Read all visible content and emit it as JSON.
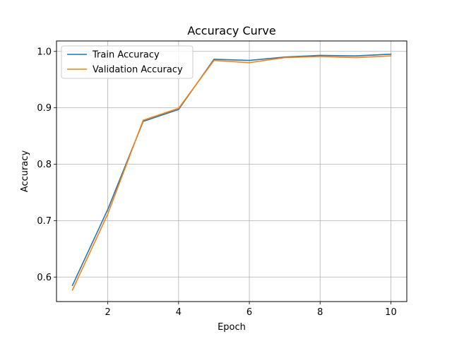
{
  "chart_data": {
    "type": "line",
    "title": "Accuracy Curve",
    "xlabel": "Epoch",
    "ylabel": "Accuracy",
    "x": [
      1,
      2,
      3,
      4,
      5,
      6,
      7,
      8,
      9,
      10
    ],
    "xlim": [
      0.55,
      10.45
    ],
    "ylim": [
      0.5565,
      1.0185
    ],
    "xticks": [
      2,
      4,
      6,
      8,
      10
    ],
    "yticks": [
      0.6,
      0.7,
      0.8,
      0.9,
      1.0
    ],
    "xtick_labels": [
      "2",
      "4",
      "6",
      "8",
      "10"
    ],
    "ytick_labels": [
      "0.6",
      "0.7",
      "0.8",
      "0.9",
      "1.0"
    ],
    "grid": true,
    "legend_position": "top-left",
    "series": [
      {
        "name": "Train Accuracy",
        "color": "#1f77b4",
        "values": [
          0.585,
          0.72,
          0.876,
          0.897,
          0.986,
          0.984,
          0.99,
          0.993,
          0.992,
          0.995
        ]
      },
      {
        "name": "Validation Accuracy",
        "color": "#ff7f0e",
        "values": [
          0.577,
          0.712,
          0.878,
          0.899,
          0.984,
          0.98,
          0.989,
          0.991,
          0.989,
          0.992
        ]
      }
    ]
  }
}
